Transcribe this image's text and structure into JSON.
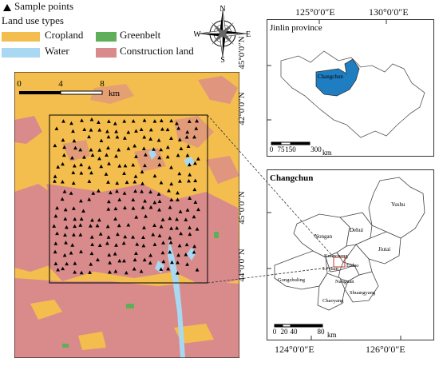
{
  "legend": {
    "sample_points": "Sample points",
    "land_use_title": "Land use types",
    "classes": [
      {
        "label": "Cropland",
        "color": "#F4BE4E"
      },
      {
        "label": "Greenbelt",
        "color": "#5FAE5A"
      },
      {
        "label": "Water",
        "color": "#A9D9F2"
      },
      {
        "label": "Construction land",
        "color": "#D98B8B"
      }
    ]
  },
  "compass": {
    "n": "N",
    "s": "S",
    "e": "E",
    "w": "W"
  },
  "main_map": {
    "scale_ticks": [
      "0",
      "4",
      "8"
    ],
    "scale_unit": "km"
  },
  "jilin_map": {
    "title": "Jinlin province",
    "top_ticks": [
      "125°0′0″E",
      "130°0′0″E"
    ],
    "left_ticks": [
      "45°0′0″N",
      "42°0′0″N"
    ],
    "highlight_label": "Changchun",
    "scale_ticks": [
      "0",
      "75",
      "150",
      "300"
    ],
    "scale_unit": "km"
  },
  "changchun_map": {
    "title": "Changchun",
    "left_ticks": [
      "45°0′0″N",
      "44°0′0″N"
    ],
    "districts": [
      "Yushu",
      "Nongan",
      "Dehui",
      "Jiutai",
      "Kuancheng",
      "Erdao",
      "Gongzhuling",
      "Lvyuan",
      "Nanguan",
      "Shuangyang",
      "Chaoyang"
    ],
    "scale_ticks": [
      "0",
      "20",
      "40",
      "80"
    ],
    "scale_unit": "km"
  },
  "bottom_ticks": [
    "124°0′0″E",
    "126°0′0″E"
  ],
  "colors": {
    "cropland": "#F4BE4E",
    "construction": "#D98B8B",
    "water": "#A9D9F2",
    "greenbelt": "#5FAE5A",
    "highlight": "#1F7EC1"
  }
}
